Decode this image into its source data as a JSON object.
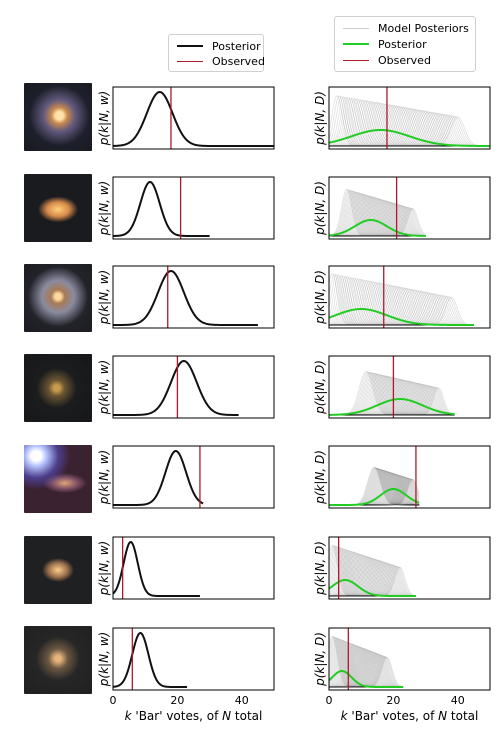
{
  "chart_data": {
    "type": "line",
    "xlim": [
      0,
      50
    ],
    "xticks": [
      0,
      20,
      40
    ],
    "columns": {
      "left": {
        "ylabel": "p(k|N, w)",
        "xlabel_prefix": "k",
        "xlabel_quote": " 'Bar' votes, of ",
        "xlabel_N": "N",
        "xlabel_suffix": " total",
        "legend": {
          "posterior": "Posterior",
          "observed": "Observed"
        }
      },
      "right": {
        "ylabel": "p(k|N, D)",
        "xlabel_prefix": "k",
        "xlabel_quote": " 'Bar' votes, of ",
        "xlabel_N": "N",
        "xlabel_suffix": " total",
        "legend": {
          "models": "Model Posteriors",
          "posterior": "Posterior",
          "observed": "Observed"
        }
      }
    },
    "rows": [
      {
        "N": 50,
        "w_mean": 14.5,
        "w_sd": 4.0,
        "observed": 18,
        "d_mean": 16,
        "d_sd": 9,
        "d_maxcenter": 40,
        "galaxy": "spiral-blue"
      },
      {
        "N": 30,
        "w_mean": 11.5,
        "w_sd": 3.0,
        "observed": 21,
        "d_mean": 13,
        "d_sd": 5,
        "d_maxcenter": 26,
        "galaxy": "elliptical-orange"
      },
      {
        "N": 45,
        "w_mean": 18.0,
        "w_sd": 4.0,
        "observed": 17,
        "d_mean": 10,
        "d_sd": 8,
        "d_maxcenter": 38,
        "galaxy": "spiral-faint"
      },
      {
        "N": 39,
        "w_mean": 22.0,
        "w_sd": 4.0,
        "observed": 20,
        "d_mean": 22,
        "d_sd": 7,
        "d_maxcenter": 34,
        "galaxy": "dim-small"
      },
      {
        "N": 28,
        "w_mean": 19.5,
        "w_sd": 3.2,
        "observed": 27,
        "d_mean": 20,
        "d_sd": 4,
        "d_maxcenter": 26,
        "galaxy": "bright-star"
      },
      {
        "N": 27,
        "w_mean": 5.5,
        "w_sd": 2.2,
        "observed": 3,
        "d_mean": 5,
        "d_sd": 4,
        "d_maxcenter": 22,
        "galaxy": "compact-oval"
      },
      {
        "N": 23,
        "w_mean": 8.5,
        "w_sd": 2.5,
        "observed": 6,
        "d_mean": 4,
        "d_sd": 3,
        "d_maxcenter": 18,
        "galaxy": "faint-blob"
      }
    ],
    "colors": {
      "posterior": "#111111",
      "observed": "#b2182b",
      "model_posterior": "#000000",
      "green": "#22cc22"
    }
  }
}
